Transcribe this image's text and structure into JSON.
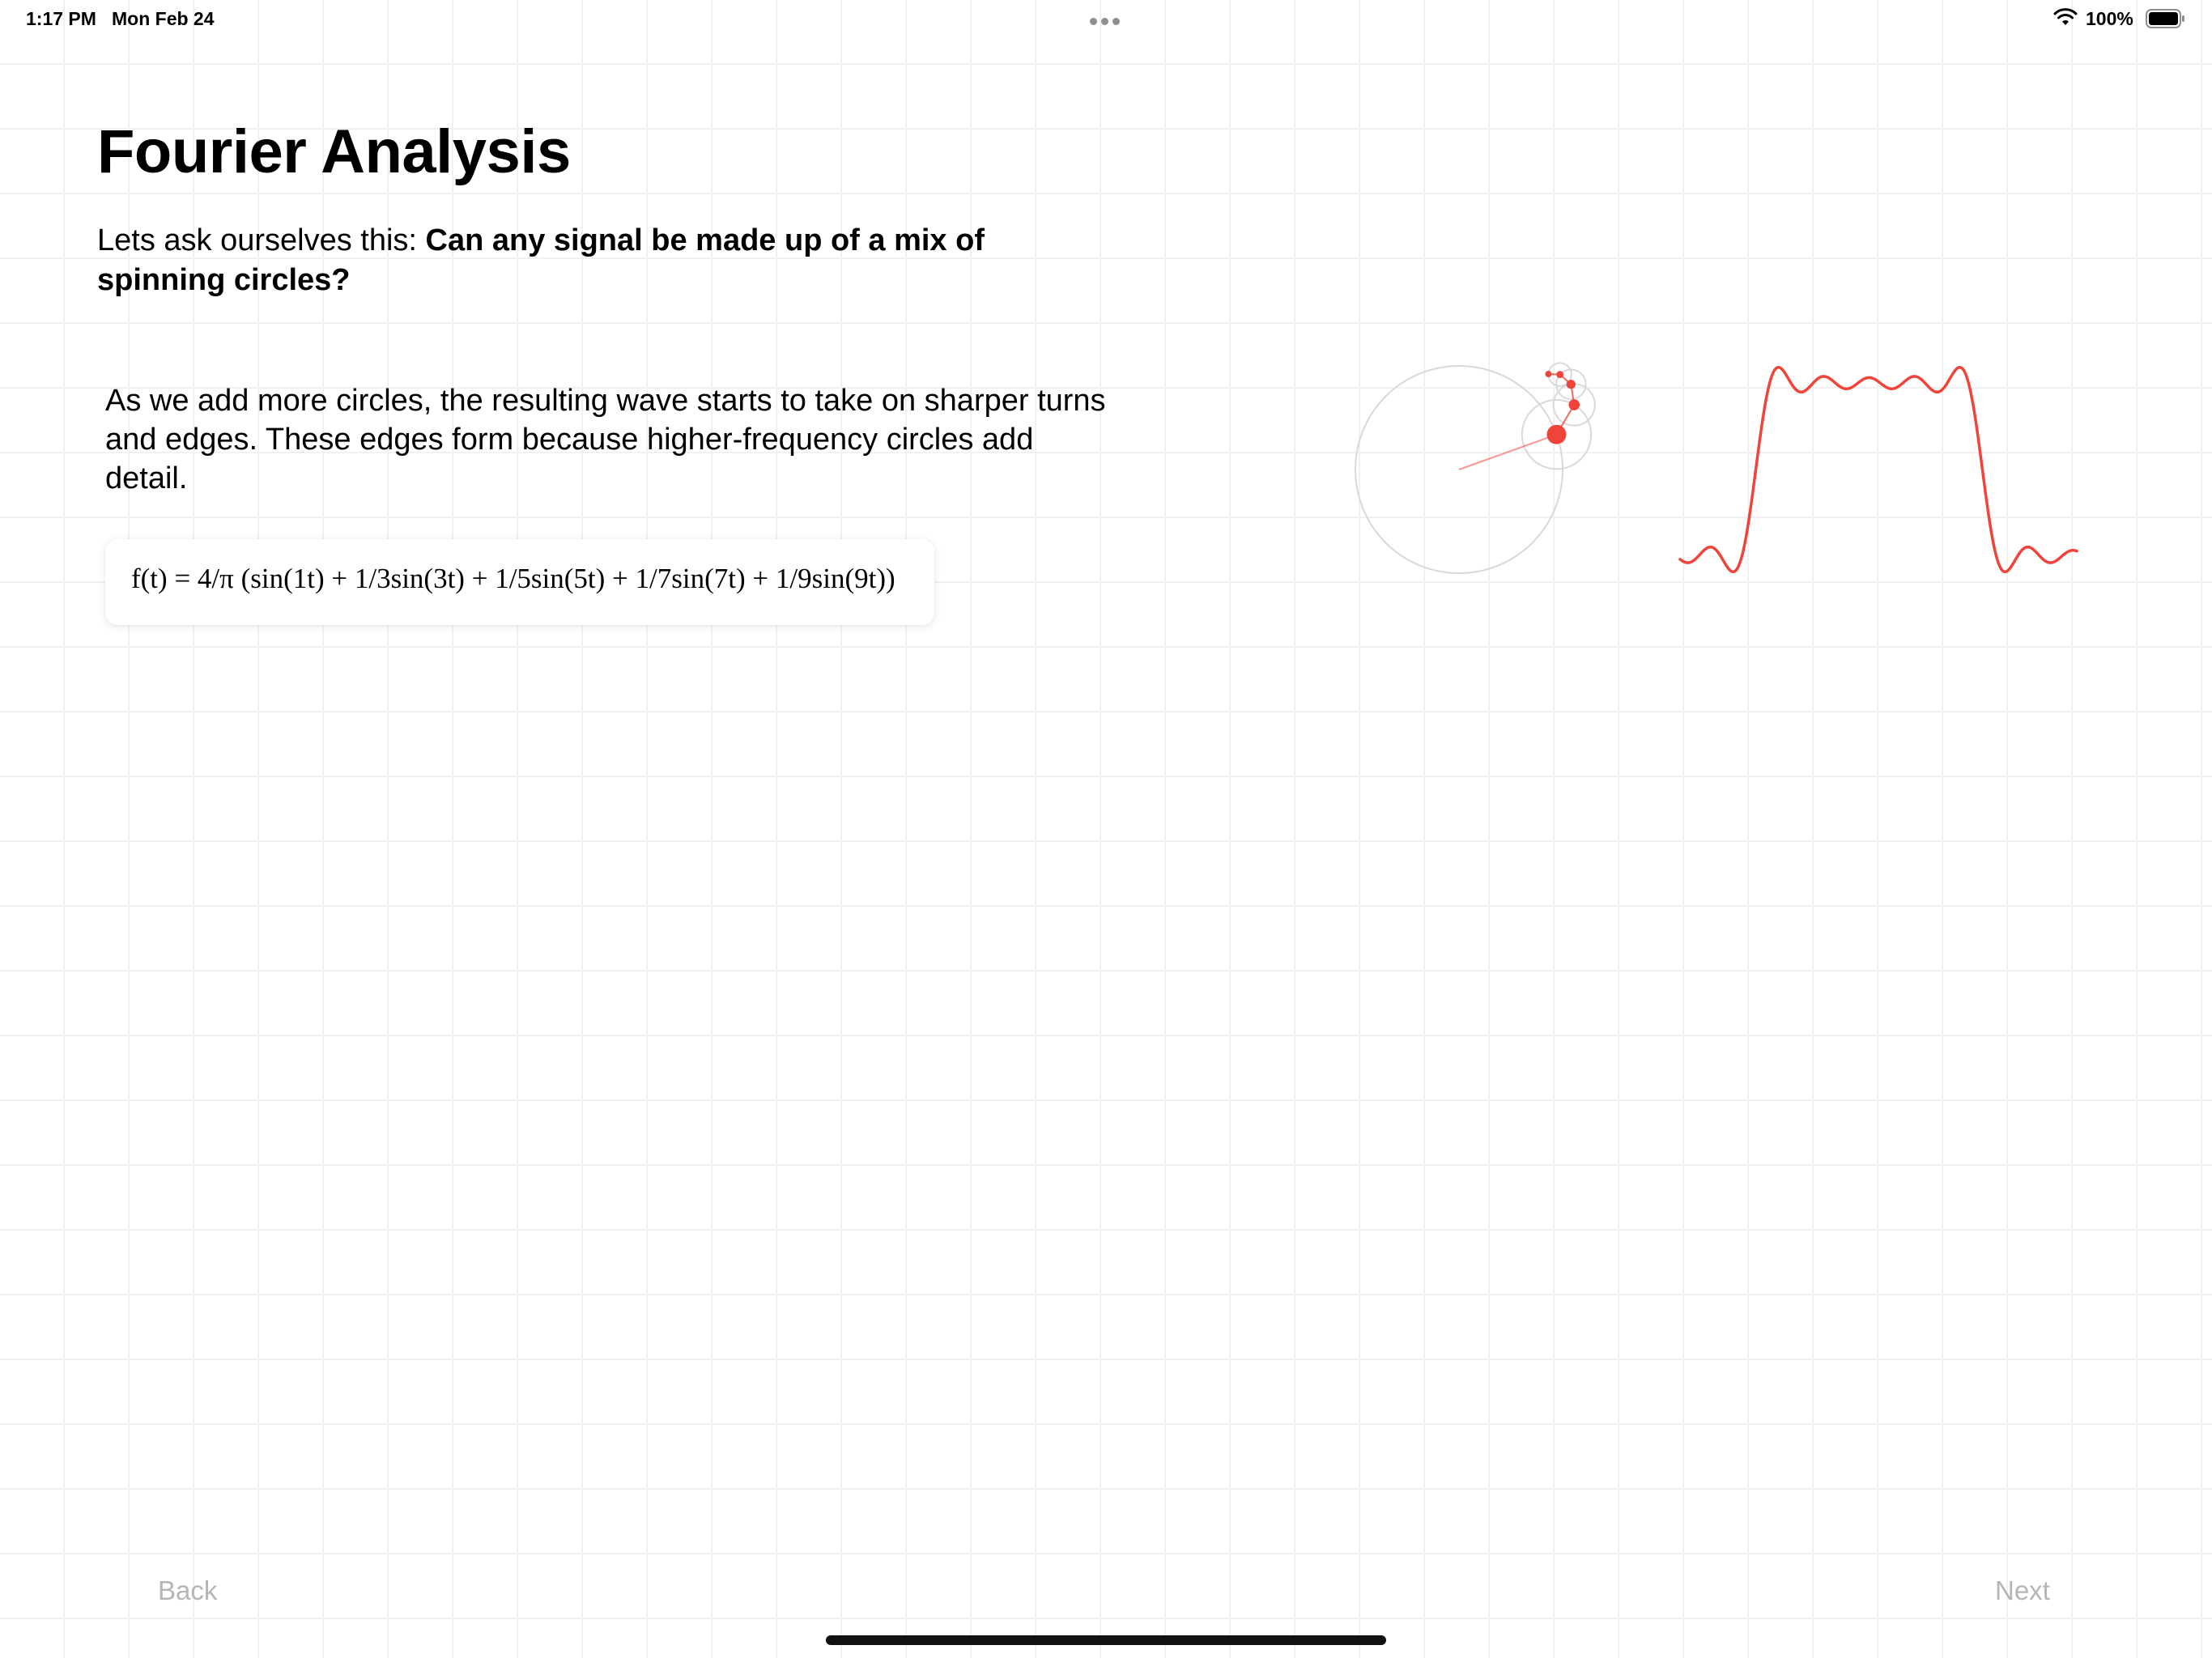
{
  "status_bar": {
    "time": "1:17 PM",
    "date": "Mon Feb 24",
    "battery_percent": "100%",
    "battery_level": 1.0,
    "icons": [
      "multitasking-dots-icon",
      "wifi-icon",
      "battery-icon"
    ]
  },
  "page": {
    "title": "Fourier Analysis",
    "lead_prefix": "Lets ask ourselves this: ",
    "lead_question": "Can any signal be made up of a mix of spinning circles?",
    "body": "As we add more circles, the resulting wave starts to take on sharper turns and edges. These edges form because higher-frequency circles add detail.",
    "formula": "f(t) = 4/π (sin(1t) + 1/3sin(3t) + 1/5sin(5t) + 1/7sin(7t) + 1/9sin(9t))"
  },
  "visualization": {
    "harmonics": [
      1,
      3,
      5,
      7,
      9
    ],
    "accent_color": "#f0433a",
    "circle_color": "#d9d9d9"
  },
  "navigation": {
    "back_label": "Back",
    "next_label": "Next"
  },
  "colors": {
    "accent": "#f0433a",
    "disabled_text": "#b5b5b5",
    "grid": "#f1f1f1"
  }
}
